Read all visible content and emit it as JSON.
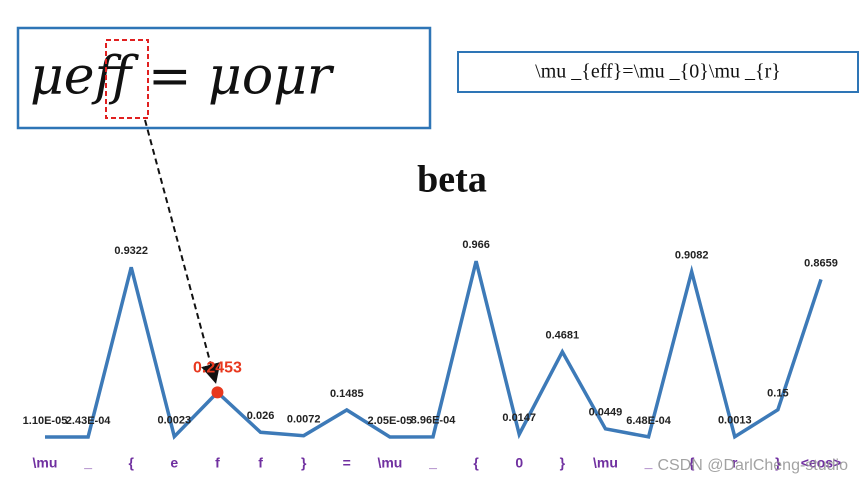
{
  "chart_data": {
    "type": "line",
    "title": "beta",
    "handwriting": "μeff = μoμr",
    "latex": "\\mu _{eff}=\\mu _{0}\\mu _{r}",
    "watermark": "CSDN @DarlCheng-studio",
    "color": "#3d7ab8",
    "highlight_index": 4,
    "highlight_color": "#e8381e",
    "categories": [
      "\\mu",
      "_",
      "{",
      "e",
      "f",
      "f",
      "}",
      "=",
      "\\mu",
      "_",
      "{",
      "0",
      "}",
      "\\mu",
      "_",
      "{",
      "r",
      "}",
      "<eos>"
    ],
    "values": [
      1.1e-05,
      0.000243,
      0.9322,
      0.0023,
      0.2453,
      0.026,
      0.0072,
      0.1485,
      2.05e-05,
      0.000896,
      0.966,
      0.0147,
      0.4681,
      0.0449,
      0.000648,
      0.9082,
      0.0013,
      0.15,
      0.8659
    ],
    "value_labels": [
      "1.10E-05",
      "2.43E-04",
      "0.9322",
      "0.0023",
      "0.2453",
      "0.026",
      "0.0072",
      "0.1485",
      "2.05E-05",
      "8.96E-04",
      "0.966",
      "0.0147",
      "0.4681",
      "0.0449",
      "6.48E-04",
      "0.9082",
      "0.0013",
      "0.15",
      "0.8659"
    ]
  }
}
